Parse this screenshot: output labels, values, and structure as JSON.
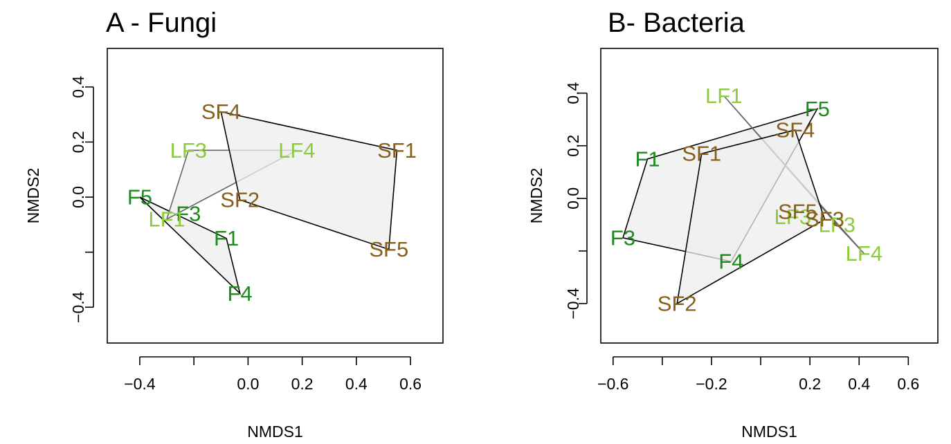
{
  "colors": {
    "F": "#1e8a1e",
    "LF": "#8ccc3c",
    "SF": "#86601a",
    "hull_fill": "#eeeeee",
    "hull_stroke_dark": "#000000",
    "hull_stroke_gray": "#666666"
  },
  "chart_data": [
    {
      "type": "scatter",
      "title": "A - Fungi",
      "xlabel": "NMDS1",
      "ylabel": "NMDS2",
      "xlim": [
        -0.52,
        0.72
      ],
      "ylim": [
        -0.53,
        0.54
      ],
      "xticks": [
        -0.4,
        -0.2,
        0.0,
        0.2,
        0.4,
        0.6
      ],
      "xtick_labels": [
        "−0.4",
        "",
        "0.0",
        "0.2",
        "0.4",
        "0.6"
      ],
      "yticks": [
        -0.4,
        -0.2,
        0.0,
        0.2,
        0.4
      ],
      "ytick_labels": [
        "−0.4",
        "",
        "0.0",
        "0.2",
        "0.4"
      ],
      "grid": false,
      "series": [
        {
          "name": "F",
          "points": [
            {
              "label": "F5",
              "x": -0.4,
              "y": 0.0
            },
            {
              "label": "F3",
              "x": -0.22,
              "y": -0.06
            },
            {
              "label": "F1",
              "x": -0.08,
              "y": -0.15
            },
            {
              "label": "F4",
              "x": -0.03,
              "y": -0.35
            }
          ]
        },
        {
          "name": "LF",
          "points": [
            {
              "label": "LF3",
              "x": -0.22,
              "y": 0.17
            },
            {
              "label": "LF4",
              "x": 0.18,
              "y": 0.17
            },
            {
              "label": "LF1",
              "x": -0.3,
              "y": -0.08
            }
          ]
        },
        {
          "name": "SF",
          "points": [
            {
              "label": "SF4",
              "x": -0.1,
              "y": 0.31
            },
            {
              "label": "SF1",
              "x": 0.55,
              "y": 0.17
            },
            {
              "label": "SF2",
              "x": -0.03,
              "y": -0.01
            },
            {
              "label": "SF5",
              "x": 0.52,
              "y": -0.19
            }
          ]
        }
      ]
    },
    {
      "type": "scatter",
      "title": "B- Bacteria",
      "xlabel": "NMDS1",
      "ylabel": "NMDS2",
      "xlim": [
        -0.65,
        0.72
      ],
      "ylim": [
        -0.55,
        0.57
      ],
      "xticks": [
        -0.6,
        -0.4,
        -0.2,
        0.0,
        0.2,
        0.4,
        0.6
      ],
      "xtick_labels": [
        "−0.6",
        "",
        "−0.2",
        "",
        "0.2",
        "0.4",
        "0.6"
      ],
      "yticks": [
        -0.4,
        -0.2,
        0.0,
        0.2,
        0.4
      ],
      "ytick_labels": [
        "−0.4",
        "",
        "0.0",
        "0.2",
        "0.4"
      ],
      "grid": false,
      "series": [
        {
          "name": "F",
          "points": [
            {
              "label": "F5",
              "x": 0.23,
              "y": 0.34
            },
            {
              "label": "F1",
              "x": -0.46,
              "y": 0.15
            },
            {
              "label": "F3",
              "x": -0.56,
              "y": -0.15
            },
            {
              "label": "F4",
              "x": -0.12,
              "y": -0.24
            }
          ]
        },
        {
          "name": "LF",
          "points": [
            {
              "label": "LF1",
              "x": -0.15,
              "y": 0.39
            },
            {
              "label": "LF3",
              "x": 0.13,
              "y": -0.07
            },
            {
              "label": "LF3",
              "x": 0.31,
              "y": -0.1
            },
            {
              "label": "LF4",
              "x": 0.42,
              "y": -0.21
            }
          ]
        },
        {
          "name": "SF",
          "points": [
            {
              "label": "SF4",
              "x": 0.14,
              "y": 0.26
            },
            {
              "label": "SF1",
              "x": -0.24,
              "y": 0.17
            },
            {
              "label": "SF5",
              "x": 0.15,
              "y": -0.05
            },
            {
              "label": "SF3",
              "x": 0.26,
              "y": -0.08
            },
            {
              "label": "SF2",
              "x": -0.34,
              "y": -0.4
            }
          ]
        }
      ]
    }
  ]
}
